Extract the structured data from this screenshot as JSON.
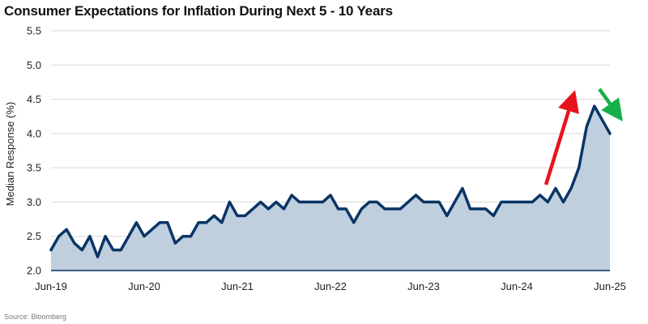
{
  "title": "Consumer Expectations for Inflation During Next 5 - 10 Years",
  "source": "Source: Bloomberg",
  "colors": {
    "line": "#0a3565",
    "area": "#bfcfdd",
    "grid": "#d9d9d9",
    "up_arrow": "#e8141b",
    "down_arrow": "#16b04a"
  },
  "chart_data": {
    "type": "area",
    "title": "Consumer Expectations for Inflation During Next 5 - 10 Years",
    "ylabel": "Median Response (%)",
    "xlabel": "",
    "ylim": [
      2.0,
      5.5
    ],
    "yticks": [
      "2.0",
      "2.5",
      "3.0",
      "3.5",
      "4.0",
      "4.5",
      "5.0",
      "5.5"
    ],
    "xticks": [
      {
        "index": 0,
        "label": "Jun-19"
      },
      {
        "index": 12,
        "label": "Jun-20"
      },
      {
        "index": 24,
        "label": "Jun-21"
      },
      {
        "index": 36,
        "label": "Jun-22"
      },
      {
        "index": 48,
        "label": "Jun-23"
      },
      {
        "index": 60,
        "label": "Jun-24"
      },
      {
        "index": 72,
        "label": "Jun-25"
      }
    ],
    "grid": true,
    "series": [
      {
        "x_start": "Jun-19",
        "x_end": "Jun-25",
        "frequency": "monthly",
        "values": [
          2.3,
          2.5,
          2.6,
          2.4,
          2.3,
          2.5,
          2.2,
          2.5,
          2.3,
          2.3,
          2.5,
          2.7,
          2.5,
          2.6,
          2.7,
          2.7,
          2.4,
          2.5,
          2.5,
          2.7,
          2.7,
          2.8,
          2.7,
          3.0,
          2.8,
          2.8,
          2.9,
          3.0,
          2.9,
          3.0,
          2.9,
          3.1,
          3.0,
          3.0,
          3.0,
          3.0,
          3.1,
          2.9,
          2.9,
          2.7,
          2.9,
          3.0,
          3.0,
          2.9,
          2.9,
          2.9,
          3.0,
          3.1,
          3.0,
          3.0,
          3.0,
          2.8,
          3.0,
          3.2,
          2.9,
          2.9,
          2.9,
          2.8,
          3.0,
          3.0,
          3.0,
          3.0,
          3.0,
          3.1,
          3.0,
          3.2,
          3.0,
          3.2,
          3.5,
          4.1,
          4.4,
          4.2,
          4.0
        ]
      }
    ],
    "annotations": [
      {
        "type": "arrow",
        "direction": "up",
        "color": "red"
      },
      {
        "type": "arrow",
        "direction": "down",
        "color": "green"
      }
    ]
  }
}
